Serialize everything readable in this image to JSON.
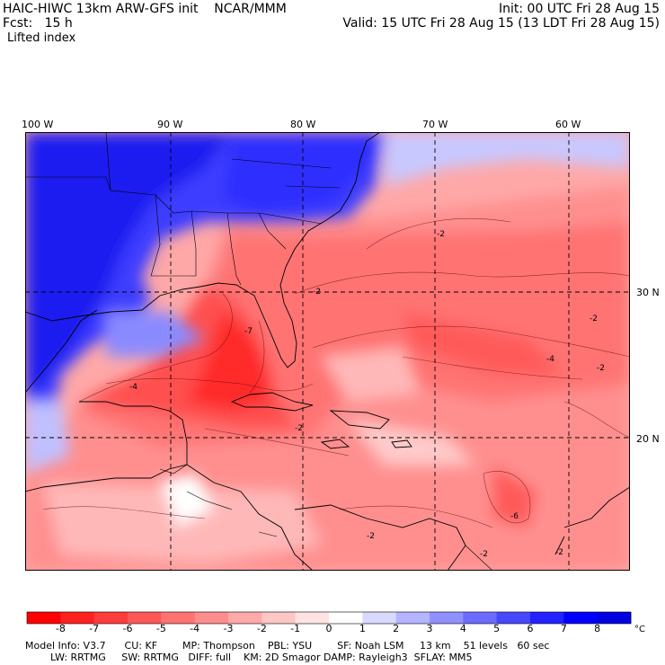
{
  "header": {
    "title": "HAIC-HIWC 13km ARW-GFS init    NCAR/MMM",
    "init": "Init: 00 UTC Fri 28 Aug 15",
    "forecast": "Fcst:   15 h",
    "valid": "Valid: 15 UTC Fri 28 Aug 15 (13 LDT Fri 28 Aug 15)",
    "field": "Lifted index"
  },
  "map": {
    "longitude_labels": [
      "100 W",
      "90 W",
      "80 W",
      "70 W",
      "60 W"
    ],
    "latitude_labels": [
      "30 N",
      "20 N"
    ],
    "contour_labels": [
      "-7",
      "-2",
      "-2",
      "-2",
      "-4",
      "-4",
      "-6",
      "-2",
      "-2",
      "-2",
      "-2",
      "-2"
    ]
  },
  "colorbar": {
    "ticks": [
      "-8",
      "-7",
      "-6",
      "-5",
      "-4",
      "-3",
      "-2",
      "-1",
      "0",
      "1",
      "2",
      "3",
      "4",
      "5",
      "6",
      "7",
      "8"
    ],
    "unit": "°C",
    "colors": [
      "#ff0000",
      "#ff2020",
      "#ff3c3c",
      "#ff5757",
      "#ff7272",
      "#ff8d8d",
      "#ffa9a9",
      "#ffc6c6",
      "#ffe3e3",
      "#ffffff",
      "#d9d9ff",
      "#b4b4ff",
      "#9090ff",
      "#6b6bff",
      "#4747ff",
      "#2323ff",
      "#0000ff",
      "#0000e0"
    ]
  },
  "footer": {
    "line1": "Model Info: V3.7      CU: KF        MP: Thompson    PBL: YSU        SF: Noah LSM     13 km    51 levels   60 sec",
    "line2": "        LW: RRTMG     SW: RRTMG   DIFF: full    KM: 2D Smagor DAMP: Rayleigh3  SFLAY: MM5"
  }
}
